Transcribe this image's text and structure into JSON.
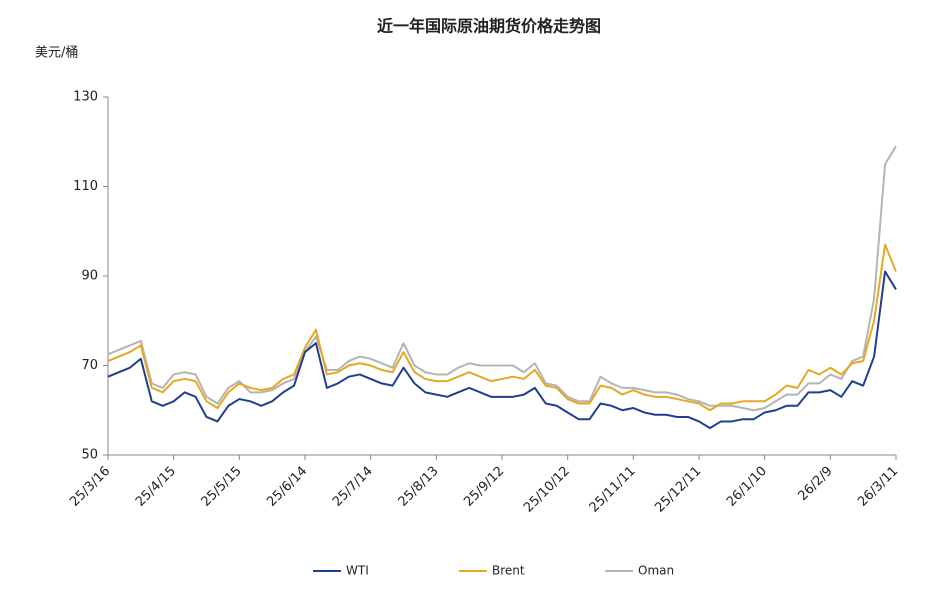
{
  "chart_data": {
    "type": "line",
    "title": "近一年国际原油期货价格走势图",
    "y_label": "美元/桶",
    "categories": [
      "25/3/16",
      null,
      null,
      null,
      null,
      null,
      "25/4/15",
      null,
      null,
      null,
      null,
      null,
      "25/5/15",
      null,
      null,
      null,
      null,
      null,
      "25/6/14",
      null,
      null,
      null,
      null,
      null,
      "25/7/14",
      null,
      null,
      null,
      null,
      null,
      "25/8/13",
      null,
      null,
      null,
      null,
      null,
      "25/9/12",
      null,
      null,
      null,
      null,
      null,
      "25/10/12",
      null,
      null,
      null,
      null,
      null,
      "25/11/11",
      null,
      null,
      null,
      null,
      null,
      "25/12/11",
      null,
      null,
      null,
      null,
      null,
      "26/1/10",
      null,
      null,
      null,
      null,
      null,
      "26/2/9",
      null,
      null,
      null,
      null,
      null,
      "26/3/11"
    ],
    "series": [
      {
        "name": "WTI",
        "color": "#1f3f8f",
        "values": [
          67.5,
          68.5,
          69.5,
          71.5,
          62,
          61,
          62,
          64,
          63,
          58.5,
          57.5,
          61,
          62.5,
          62,
          61,
          62,
          64,
          65.5,
          73,
          75,
          65,
          66,
          67.5,
          68,
          67,
          66,
          65.5,
          69.5,
          66,
          64,
          63.5,
          63,
          64,
          65,
          64,
          63,
          63,
          63,
          63.5,
          65,
          61.5,
          61,
          59.5,
          58,
          58,
          61.5,
          61,
          60,
          60.5,
          59.5,
          59,
          59,
          58.5,
          58.5,
          57.5,
          56,
          57.5,
          57.5,
          58,
          58,
          59.5,
          60,
          61,
          61,
          64,
          64,
          64.5,
          63,
          66.5,
          65.5,
          72,
          91,
          87
        ]
      },
      {
        "name": "Brent",
        "color": "#e6a823",
        "values": [
          71,
          72,
          73,
          74.5,
          65,
          64,
          66.5,
          67,
          66.5,
          62,
          60.5,
          64,
          66,
          65,
          64.5,
          65,
          67,
          68,
          74,
          78,
          68,
          68.5,
          70,
          70.5,
          70,
          69,
          68.5,
          73,
          68.5,
          67,
          66.5,
          66.5,
          67.5,
          68.5,
          67.5,
          66.5,
          67,
          67.5,
          67,
          69,
          65.5,
          65,
          62.5,
          61.5,
          61.5,
          65.5,
          65,
          63.5,
          64.5,
          63.5,
          63,
          63,
          62.5,
          62,
          61.5,
          60,
          61.5,
          61.5,
          62,
          62,
          62,
          63.5,
          65.5,
          65,
          69,
          68,
          69.5,
          68,
          70.5,
          71,
          80,
          97,
          91
        ]
      },
      {
        "name": "Oman",
        "color": "#b4b4b4",
        "values": [
          72.5,
          73.5,
          74.5,
          75.5,
          66,
          65,
          68,
          68.5,
          68,
          63,
          61.5,
          65,
          66.5,
          64,
          64,
          64.5,
          66,
          67,
          73,
          76.5,
          69,
          69,
          71,
          72,
          71.5,
          70.5,
          69.5,
          75,
          70,
          68.5,
          68,
          68,
          69.5,
          70.5,
          70,
          70,
          70,
          70,
          68.5,
          70.5,
          66,
          65.5,
          63,
          62,
          62,
          67.5,
          66,
          65,
          65,
          64.5,
          64,
          64,
          63.5,
          62.5,
          62,
          61,
          61,
          61,
          60.5,
          60,
          60.5,
          62,
          63.5,
          63.5,
          66,
          66,
          68,
          67,
          71,
          72,
          85,
          115,
          119
        ]
      }
    ],
    "ylim": [
      50,
      130
    ],
    "yticks": [
      50,
      70,
      90,
      110,
      130
    ],
    "legend": "bottom"
  }
}
